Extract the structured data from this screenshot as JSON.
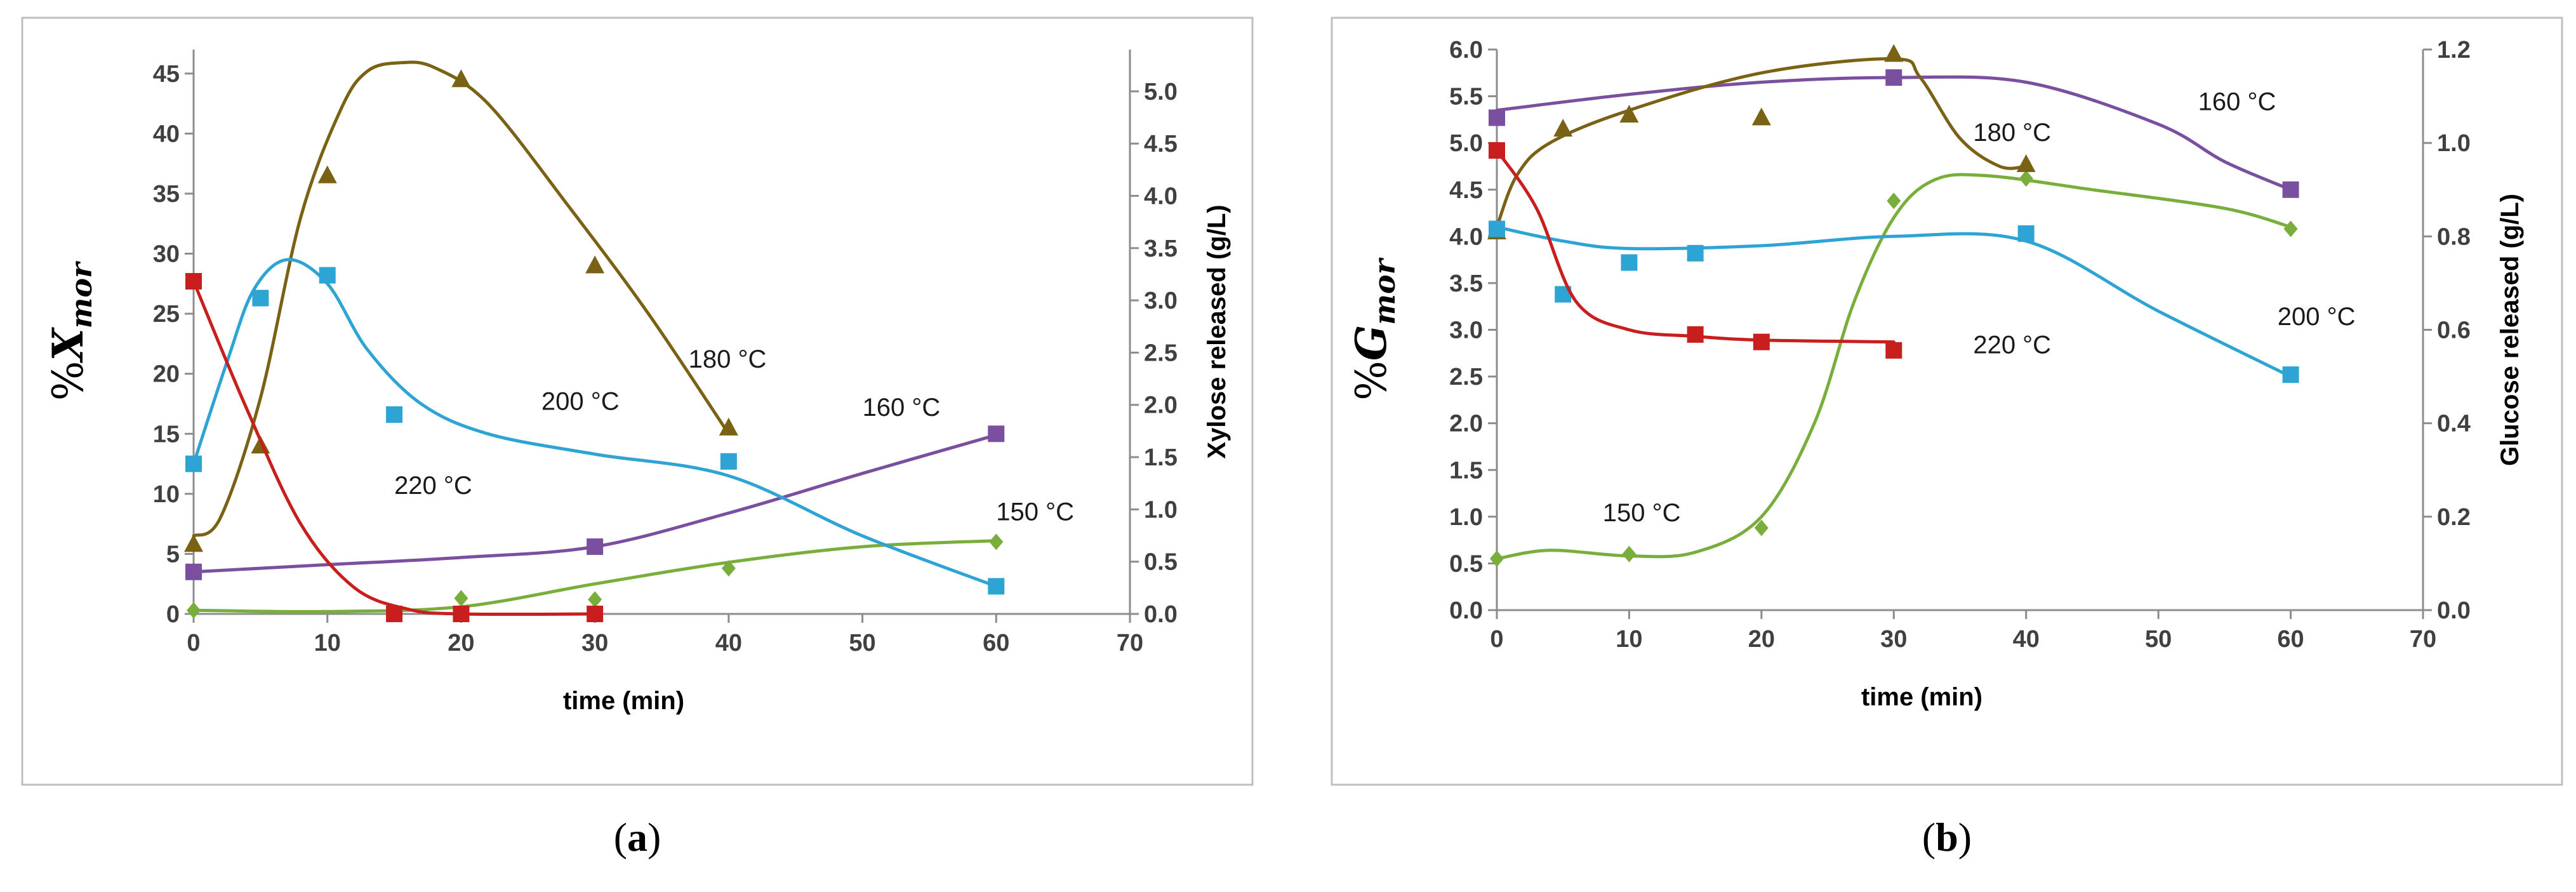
{
  "chart_data": [
    {
      "type": "scatter",
      "panel_label": "a",
      "xlabel": "time (min)",
      "ylabel_prefix": "%",
      "ylabel_symbol": "X",
      "ylabel_subscript": "mor",
      "y2label": "Xylose released (g/L)",
      "xlim": [
        0,
        70
      ],
      "ylim": [
        0,
        47
      ],
      "y2lim": [
        0,
        5.4
      ],
      "x_ticks": [
        0,
        10,
        20,
        30,
        40,
        50,
        60,
        70
      ],
      "y_ticks": [
        0,
        5,
        10,
        15,
        20,
        25,
        30,
        35,
        40,
        45
      ],
      "y2_ticks": [
        "0.0",
        "0.5",
        "1.0",
        "1.5",
        "2.0",
        "2.5",
        "3.0",
        "3.5",
        "4.0",
        "4.5",
        "5.0"
      ],
      "grid": false,
      "series": [
        {
          "name": "150 °C",
          "marker": "diamond",
          "color": "#7aae3c",
          "x": [
            0,
            20,
            30,
            40,
            60
          ],
          "y": [
            0.3,
            1.3,
            1.2,
            3.8,
            6.0
          ],
          "curve": [
            [
              0,
              0.3
            ],
            [
              10,
              0.2
            ],
            [
              20,
              0.6
            ],
            [
              30,
              2.5
            ],
            [
              40,
              4.3
            ],
            [
              50,
              5.6
            ],
            [
              60,
              6.1
            ]
          ],
          "label_pos": [
            60,
            7.8
          ]
        },
        {
          "name": "160 °C",
          "marker": "square",
          "color": "#7a4f9f",
          "x": [
            0,
            30,
            60
          ],
          "y": [
            3.5,
            5.6,
            15.0
          ],
          "curve": [
            [
              0,
              3.5
            ],
            [
              10,
              4.1
            ],
            [
              20,
              4.7
            ],
            [
              30,
              5.6
            ],
            [
              40,
              8.4
            ],
            [
              50,
              11.7
            ],
            [
              60,
              14.9
            ]
          ],
          "label_pos": [
            50,
            16.5
          ]
        },
        {
          "name": "180 °C",
          "marker": "triangle",
          "color": "#7a6215",
          "x": [
            0,
            5,
            10,
            20,
            30,
            40
          ],
          "y": [
            5.8,
            14.0,
            36.5,
            44.5,
            29.0,
            15.5
          ],
          "curve": [
            [
              0,
              6.5
            ],
            [
              2,
              8.0
            ],
            [
              5,
              18.0
            ],
            [
              8,
              33.0
            ],
            [
              11,
              42.0
            ],
            [
              13,
              45.2
            ],
            [
              15.5,
              45.9
            ],
            [
              18,
              45.5
            ],
            [
              22,
              42.5
            ],
            [
              28,
              34.0
            ],
            [
              34,
              25.0
            ],
            [
              40,
              15.0
            ]
          ],
          "label_pos": [
            37,
            20.5
          ]
        },
        {
          "name": "200 °C",
          "marker": "square",
          "color": "#2ea4d4",
          "x": [
            0,
            5,
            10,
            15,
            40,
            60
          ],
          "y": [
            12.5,
            26.3,
            28.2,
            16.6,
            12.7,
            2.3
          ],
          "curve": [
            [
              0,
              12.5
            ],
            [
              2.5,
              21.0
            ],
            [
              4.5,
              27.0
            ],
            [
              7,
              29.5
            ],
            [
              10,
              27.5
            ],
            [
              13,
              22.0
            ],
            [
              17,
              17.5
            ],
            [
              22,
              15.0
            ],
            [
              30,
              13.3
            ],
            [
              40,
              11.5
            ],
            [
              50,
              6.5
            ],
            [
              60,
              2.3
            ]
          ],
          "label_pos": [
            26,
            17.0
          ]
        },
        {
          "name": "220 °C",
          "marker": "square",
          "color": "#c81e1e",
          "x": [
            0,
            15,
            20,
            30
          ],
          "y": [
            27.7,
            0.0,
            0.0,
            0.0
          ],
          "curve": [
            [
              0,
              27.7
            ],
            [
              4,
              17.0
            ],
            [
              8,
              7.5
            ],
            [
              12,
              2.2
            ],
            [
              16,
              0.4
            ],
            [
              20,
              0.0
            ],
            [
              30,
              0.0
            ]
          ],
          "label_pos": [
            15,
            10.0
          ]
        }
      ]
    },
    {
      "type": "scatter",
      "panel_label": "b",
      "xlabel": "time (min)",
      "ylabel_prefix": "%",
      "ylabel_symbol": "G",
      "ylabel_subscript": "mor",
      "y2label": "Glucose released (g/L)",
      "xlim": [
        0,
        70
      ],
      "ylim": [
        0,
        6.0
      ],
      "y2lim": [
        0,
        1.2
      ],
      "x_ticks": [
        0,
        10,
        20,
        30,
        40,
        50,
        60,
        70
      ],
      "y_ticks": [
        "0.0",
        "0.5",
        "1.0",
        "1.5",
        "2.0",
        "2.5",
        "3.0",
        "3.5",
        "4.0",
        "4.5",
        "5.0",
        "5.5",
        "6.0"
      ],
      "y2_ticks": [
        "0.0",
        "0.2",
        "0.4",
        "0.6",
        "0.8",
        "1.0",
        "1.2"
      ],
      "grid": false,
      "series": [
        {
          "name": "150 °C",
          "marker": "diamond",
          "color": "#7aae3c",
          "x": [
            0,
            10,
            20,
            30,
            40,
            60
          ],
          "y": [
            0.55,
            0.6,
            0.88,
            4.38,
            4.62,
            4.08
          ],
          "curve": [
            [
              0,
              0.55
            ],
            [
              4,
              0.64
            ],
            [
              10,
              0.58
            ],
            [
              15,
              0.62
            ],
            [
              20,
              1.0
            ],
            [
              24,
              2.0
            ],
            [
              27,
              3.3
            ],
            [
              30,
              4.2
            ],
            [
              33,
              4.6
            ],
            [
              37,
              4.65
            ],
            [
              45,
              4.5
            ],
            [
              55,
              4.3
            ],
            [
              60,
              4.1
            ]
          ],
          "label_pos": [
            8,
            0.95
          ]
        },
        {
          "name": "160 °C",
          "marker": "square",
          "color": "#7a4f9f",
          "x": [
            0,
            30,
            60
          ],
          "y": [
            5.27,
            5.7,
            4.5
          ],
          "curve": [
            [
              0,
              5.35
            ],
            [
              10,
              5.52
            ],
            [
              20,
              5.65
            ],
            [
              30,
              5.7
            ],
            [
              40,
              5.65
            ],
            [
              50,
              5.2
            ],
            [
              55,
              4.8
            ],
            [
              60,
              4.5
            ]
          ],
          "label_pos": [
            53,
            5.35
          ]
        },
        {
          "name": "180 °C",
          "marker": "triangle",
          "color": "#7a6215",
          "x": [
            0,
            5,
            10,
            20,
            30,
            40
          ],
          "y": [
            4.05,
            5.15,
            5.3,
            5.27,
            5.95,
            4.77
          ],
          "curve": [
            [
              0,
              4.1
            ],
            [
              1.5,
              4.65
            ],
            [
              4,
              5.0
            ],
            [
              10,
              5.35
            ],
            [
              20,
              5.75
            ],
            [
              30,
              5.9
            ],
            [
              32,
              5.7
            ],
            [
              35,
              5.05
            ],
            [
              38,
              4.75
            ],
            [
              40,
              4.75
            ]
          ],
          "label_pos": [
            36,
            5.02
          ]
        },
        {
          "name": "200 °C",
          "marker": "square",
          "color": "#2ea4d4",
          "x": [
            0,
            5,
            10,
            15,
            40,
            60
          ],
          "y": [
            4.08,
            3.38,
            3.72,
            3.82,
            4.03,
            2.52
          ],
          "curve": [
            [
              0,
              4.1
            ],
            [
              5,
              3.95
            ],
            [
              10,
              3.87
            ],
            [
              20,
              3.9
            ],
            [
              30,
              4.0
            ],
            [
              40,
              3.95
            ],
            [
              50,
              3.2
            ],
            [
              60,
              2.5
            ]
          ],
          "label_pos": [
            59,
            3.05
          ]
        },
        {
          "name": "220 °C",
          "marker": "square",
          "color": "#c81e1e",
          "x": [
            0,
            15,
            20,
            30
          ],
          "y": [
            4.92,
            2.95,
            2.87,
            2.78
          ],
          "curve": [
            [
              0,
              4.92
            ],
            [
              3,
              4.3
            ],
            [
              6,
              3.3
            ],
            [
              10,
              3.0
            ],
            [
              15,
              2.93
            ],
            [
              20,
              2.89
            ],
            [
              30,
              2.87
            ]
          ],
          "label_pos": [
            36,
            2.75
          ]
        }
      ]
    }
  ]
}
